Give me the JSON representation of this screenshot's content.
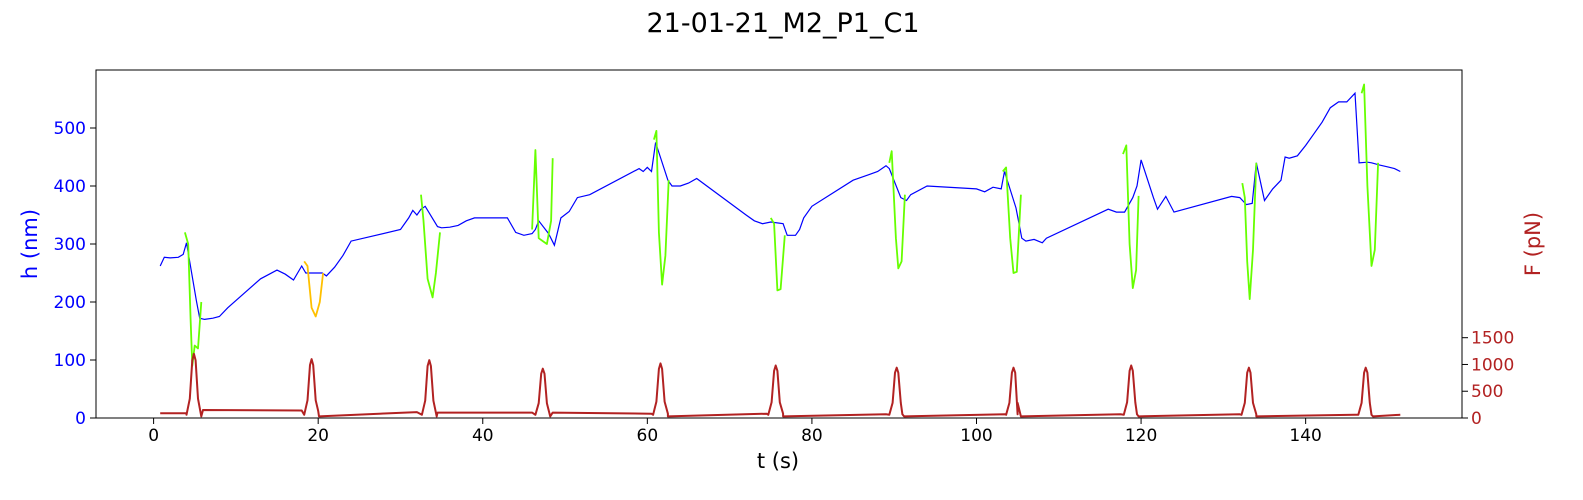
{
  "chart_data": {
    "type": "line",
    "title": "21-01-21_M2_P1_C1",
    "xlabel": "t (s)",
    "ylabel_left": "h (nm)",
    "ylabel_right": "F (pN)",
    "xlim": [
      -7,
      159
    ],
    "ylim_left": [
      0,
      600
    ],
    "ylim_right": [
      0,
      6500
    ],
    "x_ticks": [
      0,
      20,
      40,
      60,
      80,
      100,
      120,
      140
    ],
    "y_left_ticks": [
      0,
      100,
      200,
      300,
      400,
      500
    ],
    "y_right_ticks": [
      0,
      500,
      1000,
      1500
    ],
    "grid": false,
    "colors": {
      "height": "#0000ff",
      "indentation": "#66ff00",
      "indentation_alt": "#ffc000",
      "force": "#b22222",
      "left_axis": "#0000ff",
      "right_axis": "#b22222"
    },
    "series": [
      {
        "role": "height",
        "axis": "left",
        "color": "#0000ff",
        "x": [
          0.8,
          1.3,
          2.0,
          3.0,
          3.6,
          4.0,
          5.2,
          5.6,
          6.2,
          7.2,
          8.0,
          9.0,
          11.0,
          13.0,
          15.0,
          16.0,
          17.0,
          18.0,
          18.5,
          20.5,
          21.0,
          22.0,
          23.0,
          24.0,
          30.0,
          31.0,
          31.5,
          32.0,
          32.5,
          33.0,
          34.5,
          35.0,
          36.0,
          37.0,
          38.0,
          39.0,
          43.0,
          44.0,
          45.0,
          46.0,
          46.4,
          46.8,
          48.0,
          48.7,
          49.5,
          50.5,
          51.5,
          53.0,
          59.0,
          59.5,
          60.0,
          60.5,
          61.0,
          62.5,
          63.0,
          64.0,
          65.0,
          66.0,
          72.0,
          73.0,
          74.0,
          75.0,
          76.5,
          77.0,
          78.0,
          78.5,
          79.0,
          80.0,
          85.0,
          86.0,
          87.0,
          88.0,
          89.0,
          89.4,
          90.8,
          91.5,
          92.0,
          94.0,
          100.0,
          101.0,
          102.0,
          103.0,
          103.4,
          104.8,
          105.5,
          106.0,
          107.0,
          108.0,
          108.5,
          116.0,
          117.0,
          118.0,
          119.0,
          119.5,
          120.0,
          121.5,
          122.0,
          123.0,
          124.0,
          131.0,
          132.0,
          132.8,
          133.5,
          134.0,
          135.0,
          136.0,
          137.0,
          137.5,
          138.0,
          139.0,
          140.0,
          141.0,
          142.0,
          143.0,
          144.0,
          145.0,
          146.0,
          146.5,
          147.5,
          148.0,
          149.0,
          150.0,
          150.8,
          151.5
        ],
        "y": [
          262,
          277,
          276,
          277,
          282,
          302,
          202,
          172,
          170,
          172,
          175,
          190,
          215,
          240,
          255,
          248,
          238,
          262,
          250,
          250,
          245,
          260,
          280,
          305,
          325,
          345,
          358,
          350,
          360,
          365,
          330,
          328,
          329,
          332,
          340,
          345,
          345,
          320,
          315,
          318,
          325,
          340,
          318,
          298,
          345,
          356,
          380,
          385,
          430,
          425,
          432,
          425,
          475,
          410,
          400,
          400,
          405,
          413,
          350,
          340,
          335,
          338,
          335,
          315,
          315,
          325,
          345,
          365,
          410,
          415,
          420,
          425,
          435,
          430,
          380,
          375,
          385,
          400,
          395,
          390,
          398,
          395,
          425,
          362,
          310,
          305,
          308,
          302,
          310,
          360,
          355,
          355,
          380,
          400,
          445,
          380,
          360,
          382,
          355,
          382,
          380,
          368,
          370,
          440,
          375,
          395,
          410,
          450,
          448,
          452,
          470,
          490,
          510,
          535,
          545,
          545,
          560,
          440,
          441,
          440,
          436,
          433,
          430,
          425
        ]
      },
      {
        "role": "indentation",
        "axis": "left",
        "color": "#66ff00",
        "segments": [
          {
            "x": [
              3.8,
              4.2,
              4.5,
              4.7,
              5.0,
              5.4,
              5.8
            ],
            "y": [
              320,
              300,
              170,
              90,
              125,
              120,
              200
            ]
          },
          {
            "x": [
              32.5,
              32.8,
              33.3,
              33.9,
              34.3,
              34.8
            ],
            "y": [
              385,
              340,
              240,
              208,
              250,
              320
            ]
          },
          {
            "x": [
              46.0,
              46.4,
              46.8,
              47.3,
              47.8,
              48.3,
              48.5
            ],
            "y": [
              325,
              462,
              310,
              305,
              300,
              340,
              448
            ]
          },
          {
            "x": [
              60.8,
              61.1,
              61.4,
              61.8,
              62.2,
              62.6
            ],
            "y": [
              480,
              495,
              320,
              230,
              280,
              410
            ]
          },
          {
            "x": [
              75.0,
              75.4,
              75.8,
              76.2,
              76.7
            ],
            "y": [
              345,
              335,
              220,
              222,
              315
            ]
          },
          {
            "x": [
              89.4,
              89.7,
              90.2,
              90.5,
              90.9,
              91.3
            ],
            "y": [
              440,
              460,
              310,
              258,
              270,
              385
            ]
          },
          {
            "x": [
              103.2,
              103.6,
              104.1,
              104.5,
              104.9,
              105.4
            ],
            "y": [
              425,
              432,
              310,
              250,
              252,
              385
            ]
          },
          {
            "x": [
              117.8,
              118.2,
              118.6,
              119.0,
              119.4,
              119.7
            ],
            "y": [
              455,
              470,
              300,
              224,
              255,
              383
            ]
          },
          {
            "x": [
              132.3,
              132.6,
              132.9,
              133.2,
              133.6,
              134.0
            ],
            "y": [
              405,
              380,
              270,
              205,
              290,
              440
            ]
          },
          {
            "x": [
              146.8,
              147.1,
              147.5,
              148.0,
              148.4,
              148.8
            ],
            "y": [
              560,
              575,
              400,
              262,
              290,
              440
            ]
          }
        ]
      },
      {
        "role": "indentation_alt",
        "axis": "left",
        "color": "#ffc000",
        "segments": [
          {
            "x": [
              18.3,
              18.7,
              19.2,
              19.7,
              20.2,
              20.6
            ],
            "y": [
              270,
              262,
              190,
              175,
              200,
              250
            ]
          }
        ]
      },
      {
        "role": "force",
        "axis": "right",
        "color": "#b22222",
        "baseline": [
          {
            "x": 0.8,
            "y": 90
          },
          {
            "x": 4.0,
            "y": 90
          },
          {
            "x": 6.0,
            "y": 150
          },
          {
            "x": 18.0,
            "y": 140
          },
          {
            "x": 20.0,
            "y": 130
          },
          {
            "x": 32.0,
            "y": 110
          },
          {
            "x": 34.5,
            "y": 100
          },
          {
            "x": 46.0,
            "y": 100
          },
          {
            "x": 48.5,
            "y": 100
          },
          {
            "x": 60.5,
            "y": 80
          },
          {
            "x": 62.5,
            "y": 80
          },
          {
            "x": 74.5,
            "y": 80
          },
          {
            "x": 76.5,
            "y": 80
          },
          {
            "x": 89.0,
            "y": 70
          },
          {
            "x": 91.0,
            "y": 70
          },
          {
            "x": 103.5,
            "y": 70
          },
          {
            "x": 105.0,
            "y": 70
          },
          {
            "x": 117.5,
            "y": 70
          },
          {
            "x": 119.5,
            "y": 70
          },
          {
            "x": 132.0,
            "y": 70
          },
          {
            "x": 134.0,
            "y": 70
          },
          {
            "x": 146.0,
            "y": 60
          },
          {
            "x": 148.0,
            "y": 60
          },
          {
            "x": 151.5,
            "y": 60
          }
        ],
        "peaks": [
          {
            "x": 4.9,
            "y": 1200
          },
          {
            "x": 19.2,
            "y": 1100
          },
          {
            "x": 33.5,
            "y": 1080
          },
          {
            "x": 47.3,
            "y": 920
          },
          {
            "x": 61.6,
            "y": 1020
          },
          {
            "x": 75.6,
            "y": 980
          },
          {
            "x": 90.3,
            "y": 940
          },
          {
            "x": 104.5,
            "y": 940
          },
          {
            "x": 118.8,
            "y": 980
          },
          {
            "x": 133.1,
            "y": 940
          },
          {
            "x": 147.3,
            "y": 940
          }
        ]
      }
    ]
  }
}
